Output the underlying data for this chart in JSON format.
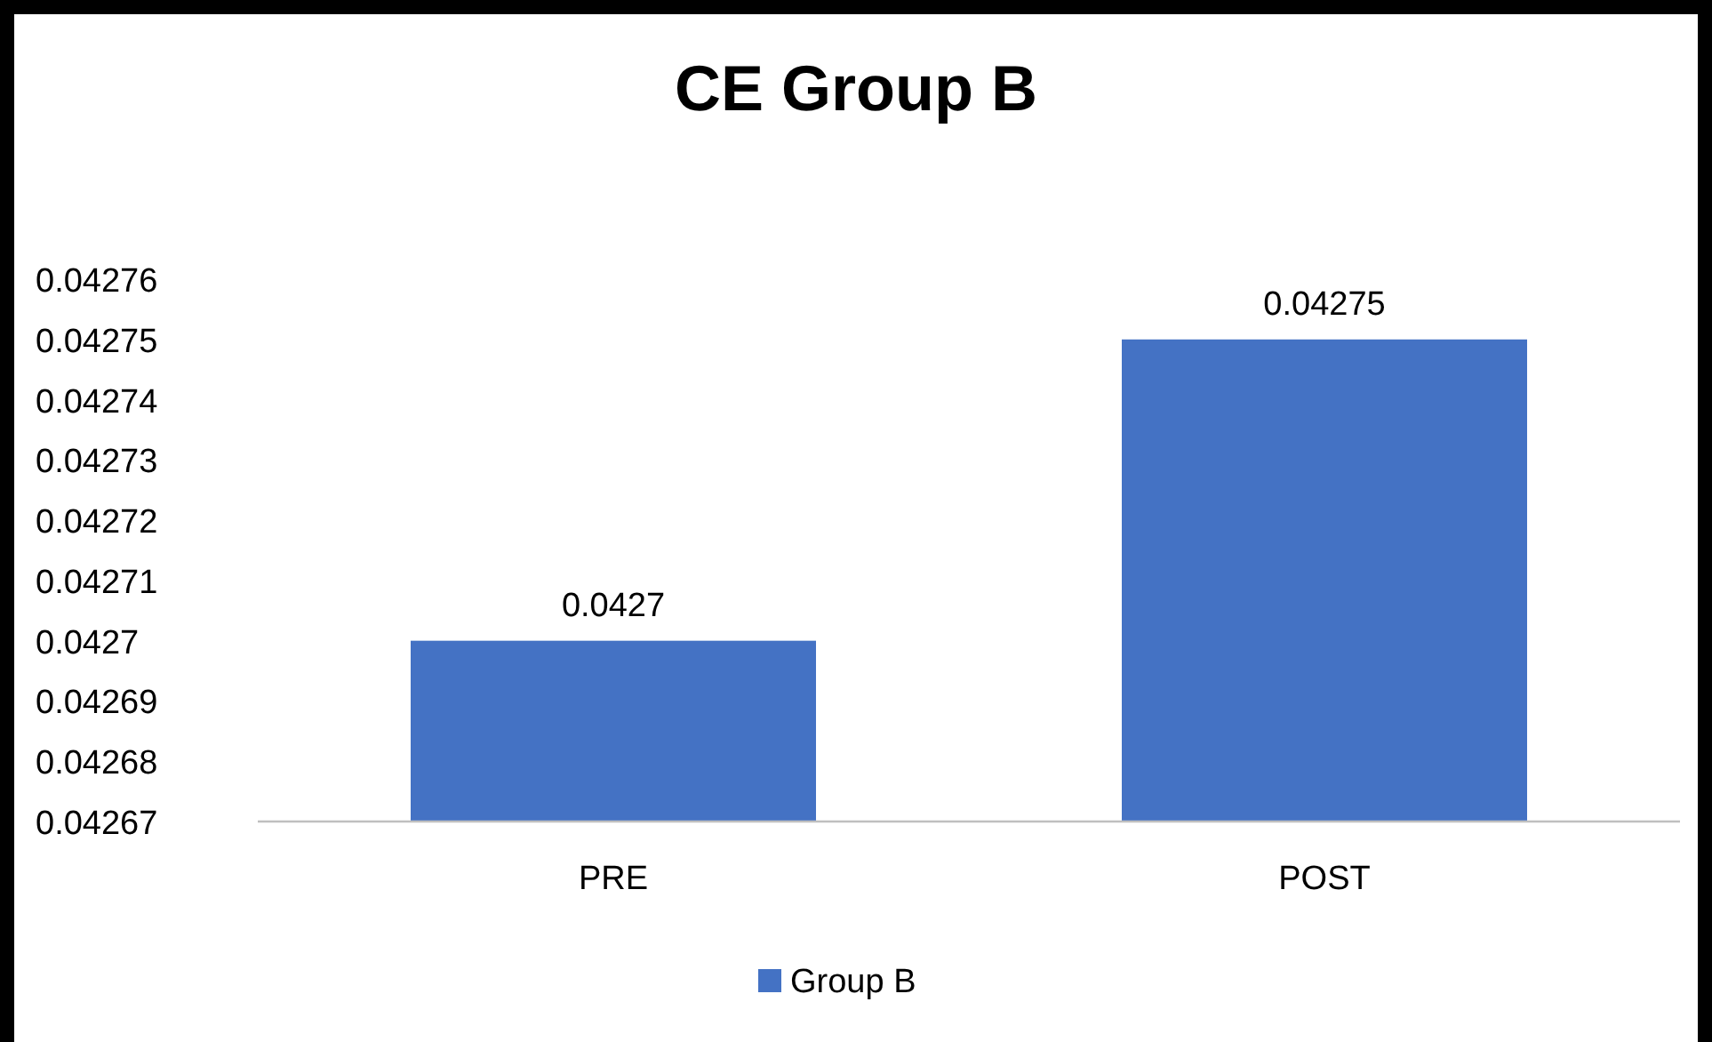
{
  "chart_data": {
    "type": "bar",
    "title": "CE Group B",
    "categories": [
      "PRE",
      "POST"
    ],
    "series": [
      {
        "name": "Group B",
        "color": "#4472c4",
        "values": [
          0.0427,
          0.04275
        ]
      }
    ],
    "ylim": [
      0.04267,
      0.04276
    ],
    "yticks": [
      0.04267,
      0.04268,
      0.04269,
      0.0427,
      0.04271,
      0.04272,
      0.04273,
      0.04274,
      0.04275,
      0.04276
    ],
    "data_labels": true,
    "grid": false,
    "legend": "bottom"
  }
}
